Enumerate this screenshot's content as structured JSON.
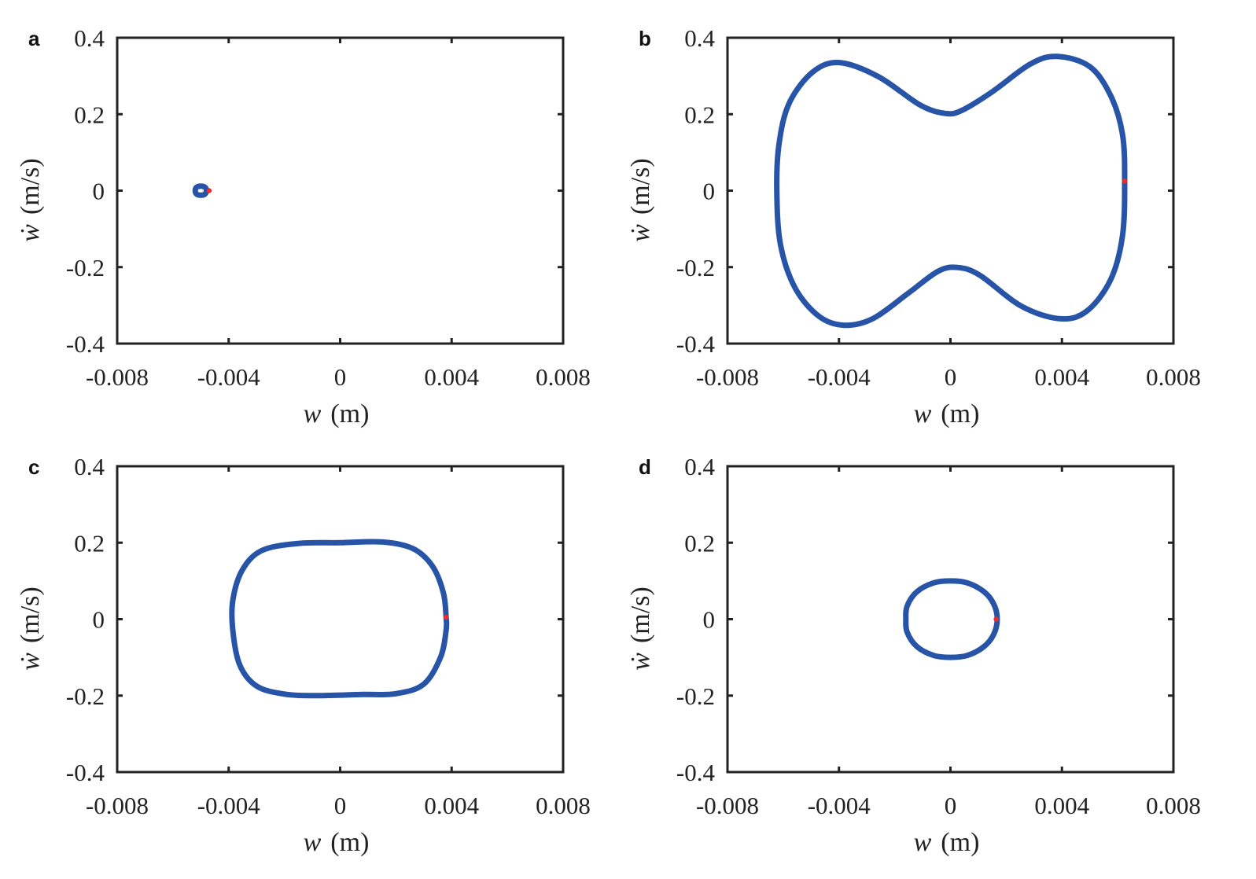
{
  "colors": {
    "curve": "#2754a6",
    "marker": "#ee2b2b",
    "axis": "#222222"
  },
  "chart_data": [
    {
      "type": "line",
      "panel": "a",
      "xlabel_var": "w",
      "xlabel_unit": "(m)",
      "ylabel_var": "ẇ",
      "ylabel_unit": "(m/s)",
      "xlim": [
        -0.008,
        0.008
      ],
      "ylim": [
        -0.4,
        0.4
      ],
      "xticks": [
        "-0.008",
        "-0.004",
        "0",
        "0.004",
        "0.008"
      ],
      "yticks": [
        "0.4",
        "0.2",
        "0",
        "-0.2",
        "-0.4"
      ],
      "grid": false,
      "points": [
        [
          -0.0048,
          0.0
        ],
        [
          -0.00485,
          0.009
        ],
        [
          -0.005,
          0.012
        ],
        [
          -0.00515,
          0.009
        ],
        [
          -0.0052,
          0.0
        ],
        [
          -0.00515,
          -0.009
        ],
        [
          -0.005,
          -0.012
        ],
        [
          -0.00485,
          -0.009
        ]
      ],
      "marker": [
        -0.0047,
        0.0
      ]
    },
    {
      "type": "line",
      "panel": "b",
      "xlabel_var": "w",
      "xlabel_unit": "(m)",
      "ylabel_var": "ẇ",
      "ylabel_unit": "(m/s)",
      "xlim": [
        -0.008,
        0.008
      ],
      "ylim": [
        -0.4,
        0.4
      ],
      "xticks": [
        "-0.008",
        "-0.004",
        "0",
        "0.004",
        "0.008"
      ],
      "yticks": [
        "0.4",
        "0.2",
        "0",
        "-0.2",
        "-0.4"
      ],
      "grid": false,
      "points": [
        [
          0.00625,
          0.025
        ],
        [
          0.00617,
          0.149
        ],
        [
          0.00574,
          0.25
        ],
        [
          0.00499,
          0.325
        ],
        [
          0.00382,
          0.351
        ],
        [
          0.00286,
          0.331
        ],
        [
          0.00147,
          0.257
        ],
        [
          0.00041,
          0.21
        ],
        [
          -0.00018,
          0.202
        ],
        [
          -0.00109,
          0.224
        ],
        [
          -0.00258,
          0.298
        ],
        [
          -0.00397,
          0.335
        ],
        [
          -0.00493,
          0.311
        ],
        [
          -0.00578,
          0.23
        ],
        [
          -0.00615,
          0.123
        ],
        [
          -0.00623,
          0.001
        ],
        [
          -0.0061,
          -0.14
        ],
        [
          -0.00557,
          -0.255
        ],
        [
          -0.00471,
          -0.329
        ],
        [
          -0.00381,
          -0.352
        ],
        [
          -0.00279,
          -0.335
        ],
        [
          -0.00151,
          -0.268
        ],
        [
          -0.00045,
          -0.211
        ],
        [
          0.00025,
          -0.201
        ],
        [
          0.00105,
          -0.221
        ],
        [
          0.00254,
          -0.302
        ],
        [
          0.00393,
          -0.335
        ],
        [
          0.00489,
          -0.315
        ],
        [
          0.00574,
          -0.234
        ],
        [
          0.00617,
          -0.12
        ]
      ],
      "marker": [
        0.00625,
        0.025
      ]
    },
    {
      "type": "line",
      "panel": "c",
      "xlabel_var": "w",
      "xlabel_unit": "(m)",
      "ylabel_var": "ẇ",
      "ylabel_unit": "(m/s)",
      "xlim": [
        -0.008,
        0.008
      ],
      "ylim": [
        -0.4,
        0.4
      ],
      "xticks": [
        "-0.008",
        "-0.004",
        "0",
        "0.004",
        "0.008"
      ],
      "yticks": [
        "0.4",
        "0.2",
        "0",
        "-0.2",
        "-0.4"
      ],
      "grid": false,
      "points": [
        [
          0.0038,
          0.005
        ],
        [
          0.0037,
          0.07
        ],
        [
          0.0033,
          0.14
        ],
        [
          0.0026,
          0.185
        ],
        [
          0.0015,
          0.202
        ],
        [
          0.0,
          0.2
        ],
        [
          -0.0015,
          0.198
        ],
        [
          -0.0028,
          0.18
        ],
        [
          -0.0035,
          0.13
        ],
        [
          -0.00385,
          0.05
        ],
        [
          -0.00385,
          -0.03
        ],
        [
          -0.0036,
          -0.12
        ],
        [
          -0.003,
          -0.175
        ],
        [
          -0.002,
          -0.196
        ],
        [
          -0.0008,
          -0.2
        ],
        [
          0.0008,
          -0.197
        ],
        [
          0.002,
          -0.195
        ],
        [
          0.003,
          -0.17
        ],
        [
          0.0036,
          -0.1
        ],
        [
          0.0038,
          -0.03
        ]
      ],
      "marker": [
        0.0038,
        0.005
      ]
    },
    {
      "type": "line",
      "panel": "d",
      "xlabel_var": "w",
      "xlabel_unit": "(m)",
      "ylabel_var": "ẇ",
      "ylabel_unit": "(m/s)",
      "xlim": [
        -0.008,
        0.008
      ],
      "ylim": [
        -0.4,
        0.4
      ],
      "xticks": [
        "-0.008",
        "-0.004",
        "0",
        "0.004",
        "0.008"
      ],
      "yticks": [
        "0.4",
        "0.2",
        "0",
        "-0.2",
        "-0.4"
      ],
      "grid": false,
      "points": [
        [
          0.00168,
          0.0
        ],
        [
          0.00155,
          0.04
        ],
        [
          0.0012,
          0.072
        ],
        [
          0.0006,
          0.095
        ],
        [
          0.0,
          0.1
        ],
        [
          -0.0006,
          0.095
        ],
        [
          -0.0012,
          0.072
        ],
        [
          -0.00155,
          0.035
        ],
        [
          -0.0016,
          0.0
        ],
        [
          -0.00155,
          -0.035
        ],
        [
          -0.0012,
          -0.072
        ],
        [
          -0.0006,
          -0.095
        ],
        [
          0.0,
          -0.1
        ],
        [
          0.0006,
          -0.095
        ],
        [
          0.0012,
          -0.072
        ],
        [
          0.00155,
          -0.04
        ]
      ],
      "marker": [
        0.00164,
        0.0
      ]
    }
  ]
}
